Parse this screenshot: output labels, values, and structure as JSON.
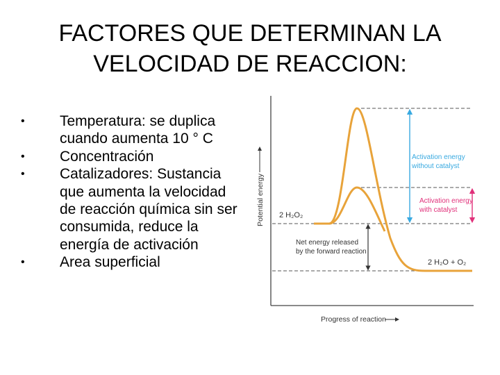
{
  "title_line1": "FACTORES QUE DETERMINAN LA",
  "title_line2": "VELOCIDAD DE REACCION:",
  "bullets": [
    {
      "text": "Temperatura: se duplica cuando aumenta 10 ° C"
    },
    {
      "text": "Concentración"
    },
    {
      "text": "Catalizadores: Sustancia que aumenta la velocidad de reacción química sin ser consumida, reduce la energía de activación"
    },
    {
      "text": "Area superficial"
    }
  ],
  "bullet_symbol": "•",
  "diagram": {
    "y_axis_label": "Potential energy",
    "x_axis_label": "Progress of reaction",
    "reactant_label": "2 H₂O₂",
    "product_label": "2 H₂O + O₂",
    "without_catalyst_line1": "Activation energy",
    "without_catalyst_line2": "without catalyst",
    "with_catalyst_line1": "Activation energy",
    "with_catalyst_line2": "with catalyst",
    "net_energy_line1": "Net energy released",
    "net_energy_line2": "by the forward reaction",
    "colors": {
      "curve": "#e8a33a",
      "activation_arrow": "#38a9e0",
      "catalyst_arrow": "#e0307a",
      "axis": "#444444",
      "dashed": "#555555"
    }
  }
}
